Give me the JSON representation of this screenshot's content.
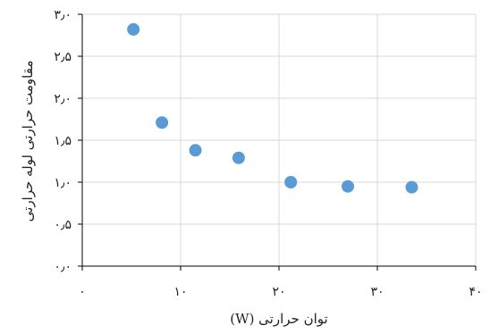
{
  "chart_data": {
    "type": "scatter",
    "title": "",
    "xlabel": "توان حرارتی (W)",
    "ylabel": "مقاومت حرارتی لوله حرارتی",
    "xlim": [
      0,
      40
    ],
    "ylim": [
      0,
      3
    ],
    "x_tick_values": [
      0,
      10,
      20,
      30,
      40
    ],
    "x_tick_labels": [
      "۰",
      "۱۰",
      "۲۰",
      "۳۰",
      "۴۰"
    ],
    "y_tick_values": [
      0,
      0.5,
      1,
      1.5,
      2,
      2.5,
      3
    ],
    "y_tick_labels": [
      "۰٫۰",
      "۰٫۵",
      "۱٫۰",
      "۱٫۵",
      "۲٫۰",
      "۲٫۵",
      "۳٫۰"
    ],
    "grid": true,
    "marker_color": "#5b9bd5",
    "points": [
      {
        "x": 5.2,
        "y": 2.82
      },
      {
        "x": 8.1,
        "y": 1.71
      },
      {
        "x": 11.5,
        "y": 1.38
      },
      {
        "x": 15.9,
        "y": 1.29
      },
      {
        "x": 21.2,
        "y": 1.0
      },
      {
        "x": 27.0,
        "y": 0.95
      },
      {
        "x": 33.5,
        "y": 0.94
      }
    ]
  }
}
